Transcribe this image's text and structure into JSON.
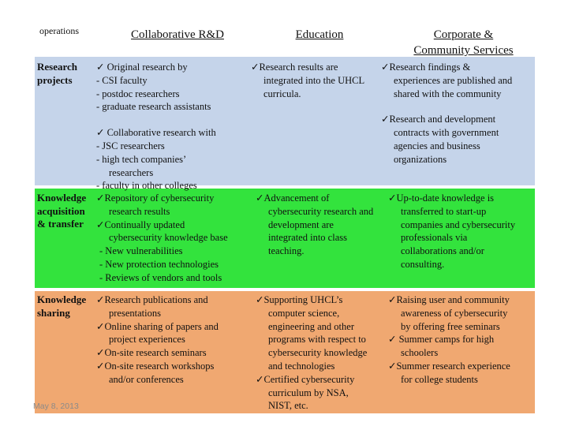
{
  "header": {
    "corner": "operations",
    "col1": "Collaborative R&D",
    "col2": "Education",
    "col3_line1": "Corporate &",
    "col3_line2": "Community Services"
  },
  "rows": {
    "research": {
      "label_line1": "Research",
      "label_line2": "projects",
      "rd": [
        "✓   Original research by",
        "-  CSI faculty",
        "-  postdoc researchers",
        "-  graduate research assistants",
        "✓  Collaborative research with",
        "-  JSC researchers",
        "-  high tech companies’",
        "researchers",
        "-  faculty in other colleges"
      ],
      "edu": [
        "✓Research results are",
        "integrated into the UHCL",
        "curricula."
      ],
      "corp": [
        "✓Research findings &",
        "experiences are published and",
        "shared with the community",
        "✓Research and development",
        "contracts with government",
        "agencies and business",
        "organizations"
      ]
    },
    "acquisition": {
      "label_line1": "Knowledge",
      "label_line2": "acquisition",
      "label_line3": "& transfer",
      "rd": [
        "✓Repository of cybersecurity",
        "research results",
        "✓Continually updated",
        "cybersecurity knowledge base",
        "-   New vulnerabilities",
        "-   New protection technologies",
        "-   Reviews of vendors and tools"
      ],
      "edu": [
        "✓Advancement of",
        "cybersecurity research and",
        "development are",
        "integrated into class",
        "teaching."
      ],
      "corp": [
        "✓Up-to-date knowledge is",
        "transferred to start-up",
        "companies and cybersecurity",
        "professionals via",
        "collaborations and/or",
        "consulting."
      ]
    },
    "sharing": {
      "label_line1": "Knowledge",
      "label_line2": "sharing",
      "rd": [
        "✓Research publications and",
        "presentations",
        "✓Online sharing of papers and",
        "project experiences",
        "✓On-site research seminars",
        "✓On-site research workshops",
        "and/or conferences"
      ],
      "edu": [
        "✓Supporting UHCL’s",
        "computer science,",
        "engineering and other",
        "programs with respect to",
        "cybersecurity knowledge",
        "and technologies",
        "✓Certified cybersecurity",
        "curriculum by NSA,",
        "NIST, etc."
      ],
      "corp": [
        "✓Raising user and community",
        "awareness of cybersecurity",
        "by offering free seminars",
        "✓ Summer camps for high",
        "schoolers",
        "✓Summer research experience",
        "for college students"
      ]
    }
  },
  "footer": {
    "date": "May 8, 2013"
  }
}
